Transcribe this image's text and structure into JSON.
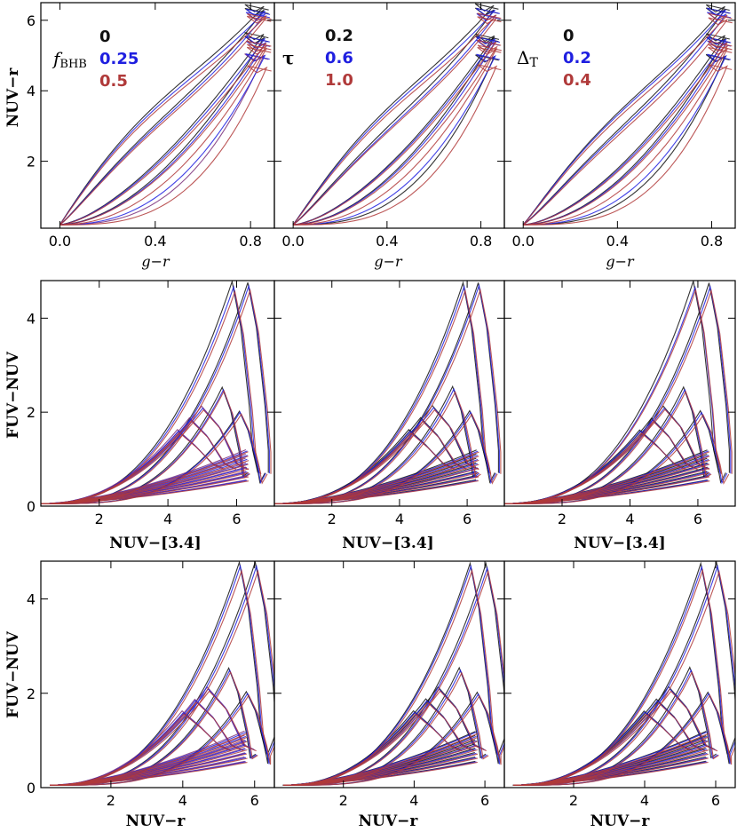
{
  "colors": {
    "black": "#111111",
    "blue": "#1f1fe0",
    "red": "#b03a3a",
    "purple": "#7a2f7a"
  },
  "legends": [
    {
      "title": "fBHB",
      "entries": [
        {
          "label": "0",
          "color": "#111111"
        },
        {
          "label": "0.25",
          "color": "#1f1fe0"
        },
        {
          "label": "0.5",
          "color": "#b03a3a"
        }
      ]
    },
    {
      "title": "τ",
      "entries": [
        {
          "label": "0.2",
          "color": "#111111"
        },
        {
          "label": "0.6",
          "color": "#1f1fe0"
        },
        {
          "label": "1.0",
          "color": "#b03a3a"
        }
      ]
    },
    {
      "title": "ΔT",
      "entries": [
        {
          "label": "0",
          "color": "#111111"
        },
        {
          "label": "0.2",
          "color": "#1f1fe0"
        },
        {
          "label": "0.4",
          "color": "#b03a3a"
        }
      ]
    }
  ],
  "chart_data": [
    {
      "type": "line",
      "row": 1,
      "column": 1,
      "xlabel": "g−r",
      "ylabel": "NUV−r",
      "xlim": [
        -0.08,
        0.9
      ],
      "ylim": [
        0.1,
        6.5
      ],
      "xticks": [
        "0.0",
        "0.4",
        "0.8"
      ],
      "yticks": [
        "2",
        "4",
        "6"
      ],
      "x_tick_values": [
        0,
        0.4,
        0.8
      ],
      "y_tick_values": [
        2,
        4,
        6
      ],
      "parameter": "fBHB",
      "series": [
        {
          "name": "0",
          "color": "#111111"
        },
        {
          "name": "0.25",
          "color": "#1f1fe0"
        },
        {
          "name": "0.5",
          "color": "#b03a3a"
        }
      ],
      "note": "Model color tracks: NUV−r rises from ~0.2 at g−r≈0 to ~6.3 at g−r≈0.85"
    },
    {
      "type": "line",
      "row": 1,
      "column": 2,
      "xlabel": "g−r",
      "ylabel": "",
      "xlim": [
        -0.08,
        0.9
      ],
      "ylim": [
        0.1,
        6.5
      ],
      "xticks": [
        "0.0",
        "0.4",
        "0.8"
      ],
      "yticks": [],
      "x_tick_values": [
        0,
        0.4,
        0.8
      ],
      "y_tick_values": [],
      "parameter": "τ",
      "series": [
        {
          "name": "0.2",
          "color": "#111111"
        },
        {
          "name": "0.6",
          "color": "#1f1fe0"
        },
        {
          "name": "1.0",
          "color": "#b03a3a"
        }
      ]
    },
    {
      "type": "line",
      "row": 1,
      "column": 3,
      "xlabel": "g−r",
      "ylabel": "",
      "xlim": [
        -0.08,
        0.9
      ],
      "ylim": [
        0.1,
        6.5
      ],
      "xticks": [
        "0.0",
        "0.4",
        "0.8"
      ],
      "yticks": [],
      "x_tick_values": [
        0,
        0.4,
        0.8
      ],
      "y_tick_values": [],
      "parameter": "ΔT",
      "series": [
        {
          "name": "0",
          "color": "#111111"
        },
        {
          "name": "0.2",
          "color": "#1f1fe0"
        },
        {
          "name": "0.4",
          "color": "#b03a3a"
        }
      ]
    },
    {
      "type": "line",
      "row": 2,
      "column": 1,
      "xlabel": "NUV−[3.4]",
      "ylabel": "FUV−NUV",
      "xlim": [
        0.3,
        7.1
      ],
      "ylim": [
        0,
        4.8
      ],
      "xticks": [
        "2",
        "4",
        "6"
      ],
      "yticks": [
        "0",
        "2",
        "4"
      ],
      "x_tick_values": [
        2,
        4,
        6
      ],
      "y_tick_values": [
        0,
        2,
        4
      ],
      "parameter": "fBHB",
      "series": [
        {
          "name": "0",
          "color": "#111111"
        },
        {
          "name": "0.25",
          "color": "#1f1fe0"
        },
        {
          "name": "0.5",
          "color": "#b03a3a"
        }
      ],
      "note": "FUV−NUV peaks near 4.7 at NUV−[3.4]≈5.9; UV-upturn tracks stay near 0.5–2.5"
    },
    {
      "type": "line",
      "row": 2,
      "column": 2,
      "xlabel": "NUV−[3.4]",
      "ylabel": "",
      "xlim": [
        0.3,
        7.1
      ],
      "ylim": [
        0,
        4.8
      ],
      "xticks": [
        "2",
        "4",
        "6"
      ],
      "yticks": [],
      "x_tick_values": [
        2,
        4,
        6
      ],
      "y_tick_values": [],
      "parameter": "τ",
      "series": [
        {
          "name": "0.2",
          "color": "#111111"
        },
        {
          "name": "0.6",
          "color": "#1f1fe0"
        },
        {
          "name": "1.0",
          "color": "#b03a3a"
        }
      ]
    },
    {
      "type": "line",
      "row": 2,
      "column": 3,
      "xlabel": "NUV−[3.4]",
      "ylabel": "",
      "xlim": [
        0.3,
        7.1
      ],
      "ylim": [
        0,
        4.8
      ],
      "xticks": [
        "2",
        "4",
        "6"
      ],
      "yticks": [],
      "x_tick_values": [
        2,
        4,
        6
      ],
      "y_tick_values": [],
      "parameter": "ΔT",
      "series": [
        {
          "name": "0",
          "color": "#111111"
        },
        {
          "name": "0.2",
          "color": "#1f1fe0"
        },
        {
          "name": "0.4",
          "color": "#b03a3a"
        }
      ]
    },
    {
      "type": "line",
      "row": 3,
      "column": 1,
      "xlabel": "NUV−r",
      "ylabel": "FUV−NUV",
      "xlim": [
        0.05,
        6.55
      ],
      "ylim": [
        0,
        4.8
      ],
      "xticks": [
        "2",
        "4",
        "6"
      ],
      "yticks": [
        "0",
        "2",
        "4"
      ],
      "x_tick_values": [
        2,
        4,
        6
      ],
      "y_tick_values": [
        0,
        2,
        4
      ],
      "parameter": "fBHB",
      "series": [
        {
          "name": "0",
          "color": "#111111"
        },
        {
          "name": "0.25",
          "color": "#1f1fe0"
        },
        {
          "name": "0.5",
          "color": "#b03a3a"
        }
      ],
      "note": "FUV−NUV peaks near 4.8 at NUV−r≈5.6"
    },
    {
      "type": "line",
      "row": 3,
      "column": 2,
      "xlabel": "NUV−r",
      "ylabel": "",
      "xlim": [
        0.05,
        6.55
      ],
      "ylim": [
        0,
        4.8
      ],
      "xticks": [
        "2",
        "4",
        "6"
      ],
      "yticks": [],
      "x_tick_values": [
        2,
        4,
        6
      ],
      "y_tick_values": [],
      "parameter": "τ",
      "series": [
        {
          "name": "0.2",
          "color": "#111111"
        },
        {
          "name": "0.6",
          "color": "#1f1fe0"
        },
        {
          "name": "1.0",
          "color": "#b03a3a"
        }
      ]
    },
    {
      "type": "line",
      "row": 3,
      "column": 3,
      "xlabel": "NUV−r",
      "ylabel": "",
      "xlim": [
        0.05,
        6.55
      ],
      "ylim": [
        0,
        4.8
      ],
      "xticks": [
        "2",
        "4",
        "6"
      ],
      "yticks": [],
      "x_tick_values": [
        2,
        4,
        6
      ],
      "y_tick_values": [],
      "parameter": "ΔT",
      "series": [
        {
          "name": "0",
          "color": "#111111"
        },
        {
          "name": "0.2",
          "color": "#1f1fe0"
        },
        {
          "name": "0.4",
          "color": "#b03a3a"
        }
      ]
    }
  ]
}
